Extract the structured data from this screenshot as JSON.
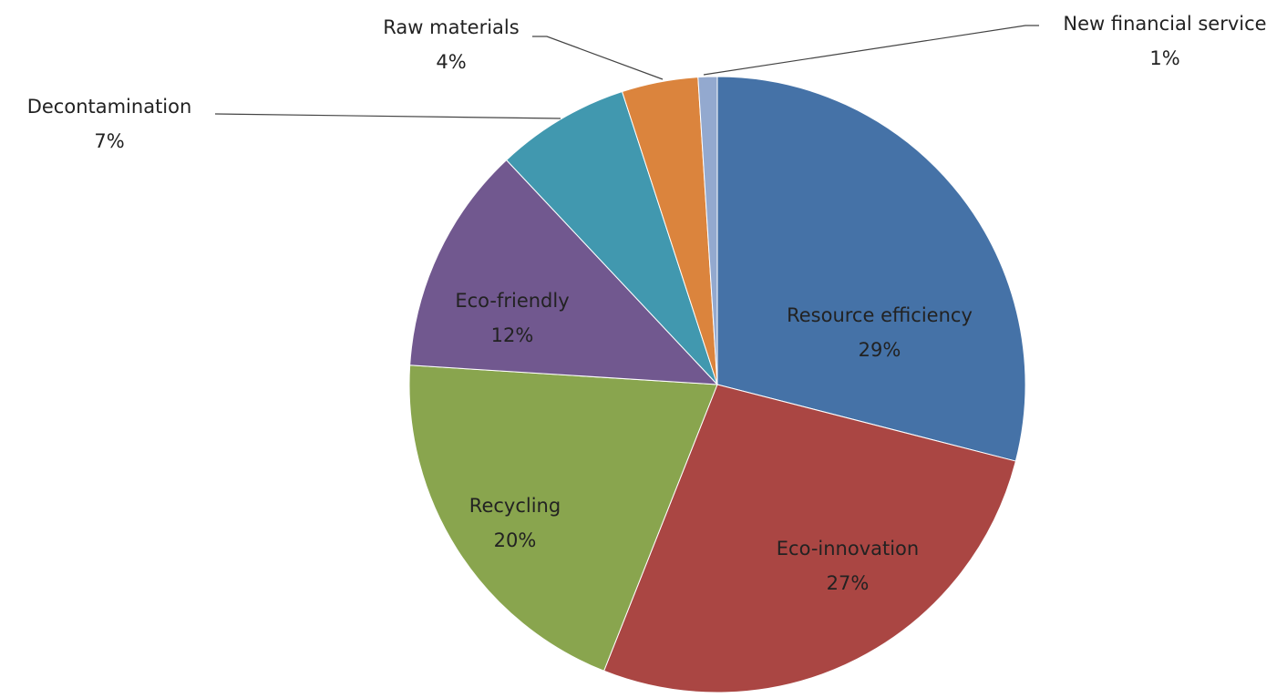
{
  "chart_data": {
    "type": "pie",
    "categories": [
      "Resource efficiency",
      "Eco-innovation",
      "Recycling",
      "Eco-friendly",
      "Decontamination",
      "Raw materials",
      "New financial service"
    ],
    "values": [
      29,
      27,
      20,
      12,
      7,
      4,
      1
    ],
    "value_labels": [
      "29%",
      "27%",
      "20%",
      "12%",
      "7%",
      "4%",
      "1%"
    ],
    "colors": [
      "#4572a7",
      "#aa4643",
      "#89a54e",
      "#71588f",
      "#4198af",
      "#db843d",
      "#93a9cf"
    ]
  }
}
